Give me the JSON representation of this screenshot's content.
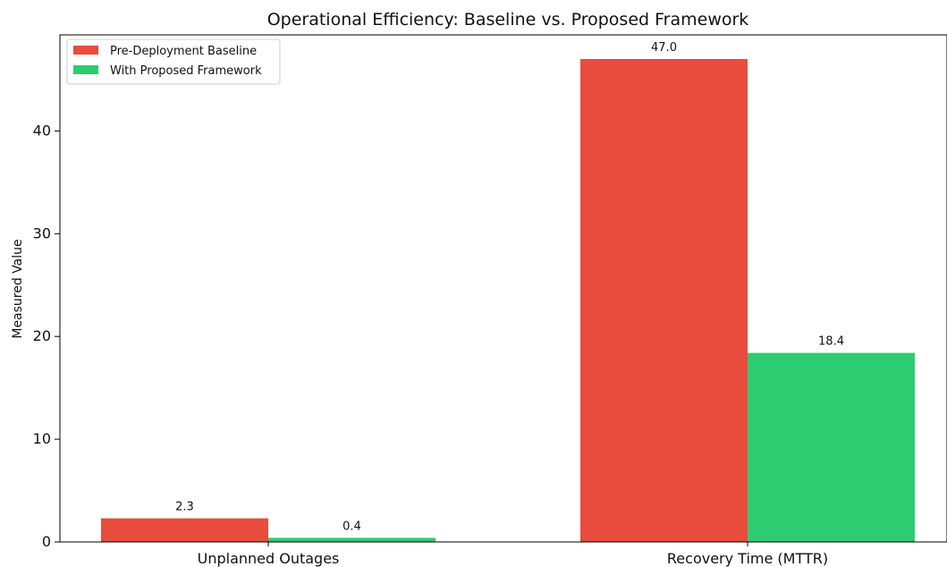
{
  "chart_data": {
    "type": "bar",
    "title": "Operational Efficiency: Baseline vs. Proposed Framework",
    "xlabel": "",
    "ylabel": "Measured Value",
    "categories": [
      "Unplanned Outages",
      "Recovery Time (MTTR)"
    ],
    "series": [
      {
        "name": "Pre-Deployment Baseline",
        "color": "#e74c3c",
        "values": [
          2.3,
          47.0
        ],
        "labels": [
          "2.3",
          "47.0"
        ]
      },
      {
        "name": "With Proposed Framework",
        "color": "#2ecc71",
        "values": [
          0.4,
          18.4
        ],
        "labels": [
          "0.4",
          "18.4"
        ]
      }
    ],
    "ylim": [
      0,
      49.35
    ],
    "yticks": [
      0,
      10,
      20,
      30,
      40
    ],
    "grid": false,
    "legend_position": "top-left"
  }
}
